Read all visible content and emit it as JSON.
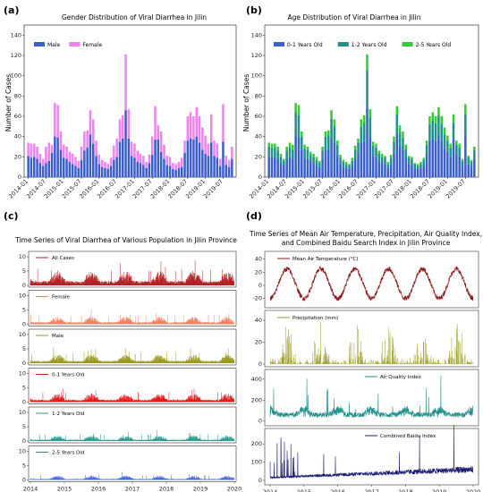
{
  "panels": {
    "a": {
      "label": "(a)",
      "title": "Gender Distribution of Viral Diarrhea in Jilin",
      "ylabel": "Number of Cases",
      "ylim": [
        0,
        150
      ],
      "yticks": [
        "0",
        "20",
        "40",
        "60",
        "80",
        "100",
        "120",
        "140"
      ],
      "xticks": [
        "2014-01",
        "2014-07",
        "2015-01",
        "2015-07",
        "2016-01",
        "2016-07",
        "2017-01",
        "2017-07",
        "2018-01",
        "2018-07",
        "2019-01",
        "2019-07"
      ]
    },
    "b": {
      "label": "(b)",
      "title": "Age Distribution of Viral Diarrhea in Jilin",
      "ylabel": "Number of Cases",
      "ylim": [
        0,
        150
      ],
      "yticks": [
        "0",
        "20",
        "40",
        "60",
        "80",
        "100",
        "120",
        "140"
      ],
      "xticks": [
        "2014-01",
        "2014-07",
        "2015-01",
        "2015-07",
        "2016-01",
        "2016-07",
        "2017-01",
        "2017-07",
        "2018-01",
        "2018-07",
        "2019-01",
        "2019-07"
      ]
    },
    "c": {
      "label": "(c)",
      "title": "Time Series of Viral Diarrhea of Various Population in Jilin Province",
      "xticks": [
        "2014",
        "2015",
        "2016",
        "2017",
        "2018",
        "2019",
        "2020"
      ]
    },
    "d": {
      "label": "(d)",
      "title_line1": "Time Series of Mean Air Temperature, Precipitation, Air Quality Index,",
      "title_line2": "and Combined Baidu Search Index in Jilin Province",
      "xticks": [
        "2014",
        "2015",
        "2016",
        "2017",
        "2018",
        "2019",
        "2020"
      ]
    }
  },
  "colors": {
    "male": "#3a5fcd",
    "female": "#ee82ee",
    "age01": "#3a5fcd",
    "age12": "#20908a",
    "age25": "#32cd32",
    "all": "#b22222",
    "female_ts": "#f08060",
    "male_ts": "#9a9a20",
    "age01_ts": "#e31a1c",
    "age12_ts": "#2a9d8f",
    "age25_ts": "#4169e1",
    "temp": "#8b1a1a",
    "precip": "#9a9a20",
    "aqi": "#20908a",
    "baidu": "#191970"
  },
  "chart_data": [
    {
      "type": "bar",
      "title": "Gender Distribution of Viral Diarrhea in Jilin",
      "xlabel": "",
      "ylabel": "Number of Cases",
      "ylim": [
        0,
        150
      ],
      "stacked": true,
      "categories": [
        "2014-01",
        "2014-02",
        "2014-03",
        "2014-04",
        "2014-05",
        "2014-06",
        "2014-07",
        "2014-08",
        "2014-09",
        "2014-10",
        "2014-11",
        "2014-12",
        "2015-01",
        "2015-02",
        "2015-03",
        "2015-04",
        "2015-05",
        "2015-06",
        "2015-07",
        "2015-08",
        "2015-09",
        "2015-10",
        "2015-11",
        "2015-12",
        "2016-01",
        "2016-02",
        "2016-03",
        "2016-04",
        "2016-05",
        "2016-06",
        "2016-07",
        "2016-08",
        "2016-09",
        "2016-10",
        "2016-11",
        "2016-12",
        "2017-01",
        "2017-02",
        "2017-03",
        "2017-04",
        "2017-05",
        "2017-06",
        "2017-07",
        "2017-08",
        "2017-09",
        "2017-10",
        "2017-11",
        "2017-12",
        "2018-01",
        "2018-02",
        "2018-03",
        "2018-04",
        "2018-05",
        "2018-06",
        "2018-07",
        "2018-08",
        "2018-09",
        "2018-10",
        "2018-11",
        "2018-12",
        "2019-01",
        "2019-02",
        "2019-03",
        "2019-04",
        "2019-05",
        "2019-06",
        "2019-07",
        "2019-08",
        "2019-09",
        "2019-10"
      ],
      "legend": "top-left",
      "series": [
        {
          "name": "Male",
          "values": [
            21,
            19,
            20,
            18,
            14,
            11,
            14,
            16,
            24,
            40,
            39,
            27,
            19,
            18,
            15,
            13,
            11,
            9,
            17,
            26,
            29,
            42,
            33,
            21,
            13,
            10,
            9,
            8,
            11,
            17,
            20,
            35,
            38,
            66,
            38,
            21,
            19,
            15,
            14,
            12,
            9,
            14,
            22,
            37,
            37,
            25,
            18,
            12,
            11,
            8,
            7,
            9,
            10,
            24,
            36,
            38,
            37,
            40,
            34,
            27,
            23,
            21,
            34,
            21,
            19,
            11,
            35,
            12,
            10,
            18
          ]
        },
        {
          "name": "Female",
          "values": [
            13,
            14,
            13,
            12,
            9,
            7,
            16,
            18,
            8,
            33,
            32,
            18,
            13,
            12,
            10,
            10,
            9,
            7,
            13,
            19,
            17,
            24,
            24,
            15,
            9,
            7,
            6,
            5,
            8,
            14,
            18,
            22,
            23,
            55,
            29,
            14,
            14,
            11,
            9,
            9,
            6,
            8,
            18,
            33,
            14,
            20,
            14,
            9,
            9,
            6,
            6,
            6,
            9,
            12,
            24,
            26,
            23,
            29,
            26,
            22,
            18,
            12,
            28,
            15,
            14,
            7,
            37,
            9,
            7,
            12
          ]
        }
      ]
    },
    {
      "type": "bar",
      "title": "Age Distribution of Viral Diarrhea in Jilin",
      "xlabel": "",
      "ylabel": "Number of Cases",
      "ylim": [
        0,
        150
      ],
      "stacked": true,
      "categories": [
        "2014-01",
        "2014-02",
        "2014-03",
        "2014-04",
        "2014-05",
        "2014-06",
        "2014-07",
        "2014-08",
        "2014-09",
        "2014-10",
        "2014-11",
        "2014-12",
        "2015-01",
        "2015-02",
        "2015-03",
        "2015-04",
        "2015-05",
        "2015-06",
        "2015-07",
        "2015-08",
        "2015-09",
        "2015-10",
        "2015-11",
        "2015-12",
        "2016-01",
        "2016-02",
        "2016-03",
        "2016-04",
        "2016-05",
        "2016-06",
        "2016-07",
        "2016-08",
        "2016-09",
        "2016-10",
        "2016-11",
        "2016-12",
        "2017-01",
        "2017-02",
        "2017-03",
        "2017-04",
        "2017-05",
        "2017-06",
        "2017-07",
        "2017-08",
        "2017-09",
        "2017-10",
        "2017-11",
        "2017-12",
        "2018-01",
        "2018-02",
        "2018-03",
        "2018-04",
        "2018-05",
        "2018-06",
        "2018-07",
        "2018-08",
        "2018-09",
        "2018-10",
        "2018-11",
        "2018-12",
        "2019-01",
        "2019-02",
        "2019-03",
        "2019-04",
        "2019-05",
        "2019-06",
        "2019-07",
        "2019-08",
        "2019-09",
        "2019-10"
      ],
      "legend": "top",
      "series": [
        {
          "name": "0-1 Years Old",
          "values": [
            20,
            20,
            19,
            18,
            14,
            11,
            18,
            20,
            18,
            42,
            40,
            27,
            19,
            18,
            15,
            14,
            12,
            10,
            18,
            27,
            27,
            39,
            34,
            22,
            13,
            10,
            9,
            8,
            11,
            18,
            23,
            34,
            36,
            68,
            39,
            21,
            20,
            16,
            14,
            13,
            9,
            13,
            24,
            42,
            30,
            27,
            19,
            13,
            12,
            9,
            8,
            9,
            11,
            22,
            36,
            38,
            36,
            42,
            36,
            29,
            25,
            20,
            37,
            22,
            20,
            11,
            42,
            13,
            10,
            18
          ]
        },
        {
          "name": "1-2 Years Old",
          "values": [
            10,
            9,
            10,
            8,
            6,
            5,
            8,
            9,
            9,
            22,
            21,
            13,
            9,
            9,
            7,
            6,
            5,
            4,
            8,
            13,
            14,
            19,
            16,
            10,
            6,
            5,
            4,
            4,
            5,
            9,
            11,
            16,
            17,
            37,
            20,
            10,
            9,
            7,
            6,
            6,
            4,
            6,
            11,
            20,
            14,
            12,
            9,
            6,
            6,
            4,
            3,
            4,
            6,
            10,
            16,
            18,
            17,
            19,
            16,
            13,
            11,
            9,
            17,
            10,
            9,
            5,
            20,
            6,
            5,
            8
          ]
        },
        {
          "name": "2-5 Years Old",
          "values": [
            4,
            4,
            4,
            4,
            3,
            2,
            4,
            5,
            5,
            9,
            10,
            5,
            4,
            3,
            3,
            3,
            3,
            2,
            4,
            5,
            5,
            8,
            7,
            4,
            3,
            2,
            2,
            1,
            3,
            4,
            4,
            7,
            8,
            16,
            8,
            4,
            4,
            3,
            3,
            2,
            2,
            3,
            5,
            8,
            7,
            6,
            4,
            2,
            2,
            1,
            2,
            2,
            2,
            4,
            8,
            8,
            7,
            8,
            8,
            7,
            5,
            4,
            8,
            4,
            4,
            2,
            10,
            2,
            2,
            4
          ]
        }
      ]
    },
    {
      "type": "line",
      "title": "Time Series of Viral Diarrhea of Various Population in Jilin Province",
      "x_range": [
        "2014",
        "2020"
      ],
      "series": [
        {
          "name": "All Cases",
          "ylim": [
            0,
            10
          ],
          "yticks": [
            0,
            5,
            10
          ],
          "style": "vlines",
          "seasonal_peaks": [
            0.8,
            0.8,
            0.85,
            1.0,
            0.7,
            0.75
          ],
          "base": 1.2,
          "amp": 2.8
        },
        {
          "name": "Female",
          "ylim": [
            0,
            10
          ],
          "yticks": [
            0,
            5,
            10
          ],
          "style": "vlines",
          "base": 0.6,
          "amp": 1.6
        },
        {
          "name": "Male",
          "ylim": [
            0,
            10
          ],
          "yticks": [
            0,
            5,
            10
          ],
          "style": "vlines",
          "base": 0.7,
          "amp": 1.8
        },
        {
          "name": "0-1 Years Old",
          "ylim": [
            0,
            10
          ],
          "yticks": [
            0,
            5,
            10
          ],
          "style": "vlines",
          "base": 0.7,
          "amp": 1.7
        },
        {
          "name": "1-2 Years Old",
          "ylim": [
            0,
            10
          ],
          "yticks": [
            0,
            5,
            10
          ],
          "style": "vlines",
          "base": 0.4,
          "amp": 1.2
        },
        {
          "name": "2-5 Years Old",
          "ylim": [
            0,
            10
          ],
          "yticks": [
            0,
            5,
            10
          ],
          "style": "vlines",
          "base": 0.3,
          "amp": 0.9
        }
      ]
    },
    {
      "type": "line",
      "title": "Time Series of Mean Air Temperature, Precipitation, Air Quality Index, and Combined Baidu Search Index in Jilin Province",
      "x_range": [
        "2014",
        "2020"
      ],
      "series": [
        {
          "name": "Mean Air Temperature (°C)",
          "ylim": [
            -30,
            45
          ],
          "yticks": [
            -20,
            0,
            20,
            40
          ],
          "style": "line",
          "annual_min": -20,
          "annual_max": 25
        },
        {
          "name": "Precipitation (mm)",
          "ylim": [
            0,
            45
          ],
          "yticks": [
            0,
            20,
            40
          ],
          "style": "vlines",
          "peak": 38
        },
        {
          "name": "Air Quality Index",
          "ylim": [
            -20,
            450
          ],
          "yticks": [
            0,
            200,
            400
          ],
          "style": "line",
          "typical": 60,
          "peak": 320
        },
        {
          "name": "Combined Baidu Index",
          "ylim": [
            -10,
            260
          ],
          "yticks": [
            0,
            100,
            200
          ],
          "style": "line",
          "typical": 30,
          "peak": 240
        }
      ]
    }
  ]
}
